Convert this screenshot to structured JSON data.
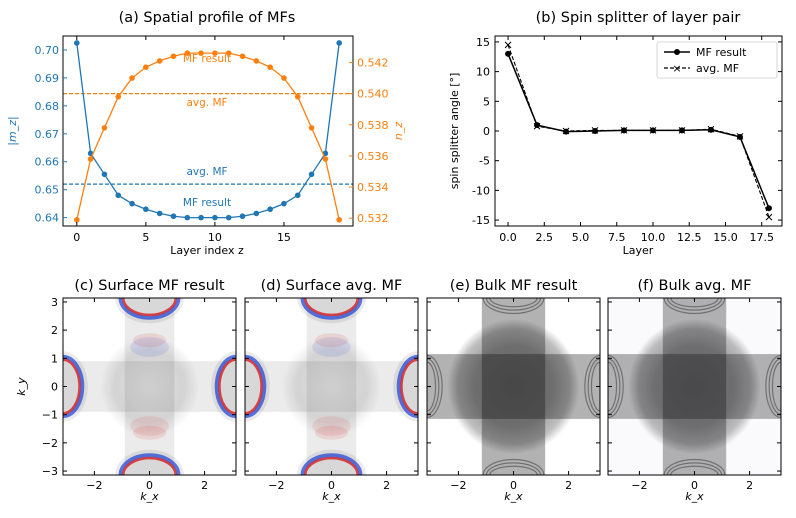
{
  "colors": {
    "blue": "#1f77b4",
    "orange": "#ff7f0e",
    "black": "#000000",
    "spectral_red": "#d62728",
    "spectral_blue": "#1a3fd6"
  },
  "chart_data": [
    {
      "type": "line",
      "title": "(a) Spatial profile of MFs",
      "xlabel": "Layer index z",
      "ylabel": "|m_z|",
      "ylabel_right": "n_z",
      "xlim": [
        -1,
        20
      ],
      "ylim": [
        0.637,
        0.705
      ],
      "ylim_right": [
        0.5315,
        0.5437
      ],
      "xticks": [
        0,
        5,
        10,
        15
      ],
      "yticks": [
        0.64,
        0.65,
        0.66,
        0.67,
        0.68,
        0.69,
        0.7
      ],
      "yticks_right": [
        0.532,
        0.534,
        0.536,
        0.538,
        0.54,
        0.542
      ],
      "ytick_labels": [
        "0.64",
        "0.65",
        "0.66",
        "0.67",
        "0.68",
        "0.69",
        "0.70"
      ],
      "ytick_labels_right": [
        "0.532",
        "0.534",
        "0.536",
        "0.538",
        "0.540",
        "0.542"
      ],
      "x": [
        0,
        1,
        2,
        3,
        4,
        5,
        6,
        7,
        8,
        9,
        10,
        11,
        12,
        13,
        14,
        15,
        16,
        17,
        18,
        19
      ],
      "series": [
        {
          "axis": "left",
          "color": "#1f77b4",
          "values": [
            0.7025,
            0.663,
            0.6555,
            0.648,
            0.645,
            0.643,
            0.6415,
            0.6405,
            0.64,
            0.64,
            0.64,
            0.64,
            0.6405,
            0.6415,
            0.643,
            0.645,
            0.648,
            0.6555,
            0.663,
            0.7025
          ]
        },
        {
          "axis": "right",
          "color": "#ff7f0e",
          "values": [
            0.5319,
            0.5358,
            0.5378,
            0.5398,
            0.541,
            0.5417,
            0.5421,
            0.5424,
            0.5426,
            0.5426,
            0.5426,
            0.5426,
            0.5424,
            0.5421,
            0.5417,
            0.541,
            0.5398,
            0.5378,
            0.5358,
            0.5319
          ]
        }
      ],
      "hlines": [
        {
          "axis": "left",
          "value": 0.652,
          "color": "#1f77b4"
        },
        {
          "axis": "right",
          "value": 0.54,
          "color": "#ff7f0e"
        }
      ],
      "annotations": {
        "orange_mf": "MF result",
        "orange_avg": "avg. MF",
        "blue_avg": "avg. MF",
        "blue_mf": "MF result"
      }
    },
    {
      "type": "line",
      "title": "(b) Spin splitter of layer pair",
      "xlabel": "Layer",
      "ylabel": "spin splitter angle [°]",
      "xlim": [
        -0.9,
        18.9
      ],
      "ylim": [
        -16,
        16
      ],
      "xticks": [
        0,
        2.5,
        5,
        7.5,
        10,
        12.5,
        15,
        17.5
      ],
      "xtick_labels": [
        "0.0",
        "2.5",
        "5.0",
        "7.5",
        "10.0",
        "12.5",
        "15.0",
        "17.5"
      ],
      "yticks": [
        -15,
        -10,
        -5,
        0,
        5,
        10,
        15
      ],
      "legend": "top-right",
      "series": [
        {
          "name": "MF result",
          "color": "#000000",
          "x": [
            0,
            2,
            4,
            6,
            8,
            10,
            12,
            14,
            16,
            18
          ],
          "values": [
            13,
            1,
            -0.1,
            0,
            0.1,
            0.1,
            0.1,
            0.2,
            -1,
            -13
          ]
        },
        {
          "name": "avg. MF",
          "color": "#000000",
          "x": [
            0,
            2,
            4,
            6,
            8,
            10,
            12,
            14,
            16,
            18
          ],
          "values": [
            14.5,
            0.8,
            0,
            0.1,
            0.1,
            0.1,
            0.1,
            0.3,
            -0.9,
            -14.5
          ]
        }
      ]
    },
    {
      "type": "heatmap",
      "title": "(c) Surface MF result",
      "variant": "surface",
      "variant_mf": true,
      "xlabel": "k_x",
      "ylabel": "k_y",
      "xlim": [
        -3.14,
        3.14
      ],
      "ylim": [
        -3.14,
        3.14
      ],
      "xticks": [
        -2,
        0,
        2
      ],
      "yticks": [
        -3,
        -2,
        -1,
        0,
        1,
        2,
        3
      ]
    },
    {
      "type": "heatmap",
      "title": "(d) Surface avg. MF",
      "variant": "surface",
      "variant_mf": false,
      "xlabel": "k_x",
      "xlim": [
        -3.14,
        3.14
      ],
      "ylim": [
        -3.14,
        3.14
      ],
      "xticks": [
        -2,
        0,
        2
      ]
    },
    {
      "type": "heatmap",
      "title": "(e) Bulk MF result",
      "variant": "bulk",
      "variant_mf": true,
      "xlabel": "k_x",
      "xlim": [
        -3.14,
        3.14
      ],
      "ylim": [
        -3.14,
        3.14
      ],
      "xticks": [
        -2,
        0,
        2
      ]
    },
    {
      "type": "heatmap",
      "title": "(f) Bulk avg. MF",
      "variant": "bulk",
      "variant_mf": false,
      "xlabel": "k_x",
      "xlim": [
        -3.14,
        3.14
      ],
      "ylim": [
        -3.14,
        3.14
      ],
      "xticks": [
        -2,
        0,
        2
      ]
    }
  ]
}
